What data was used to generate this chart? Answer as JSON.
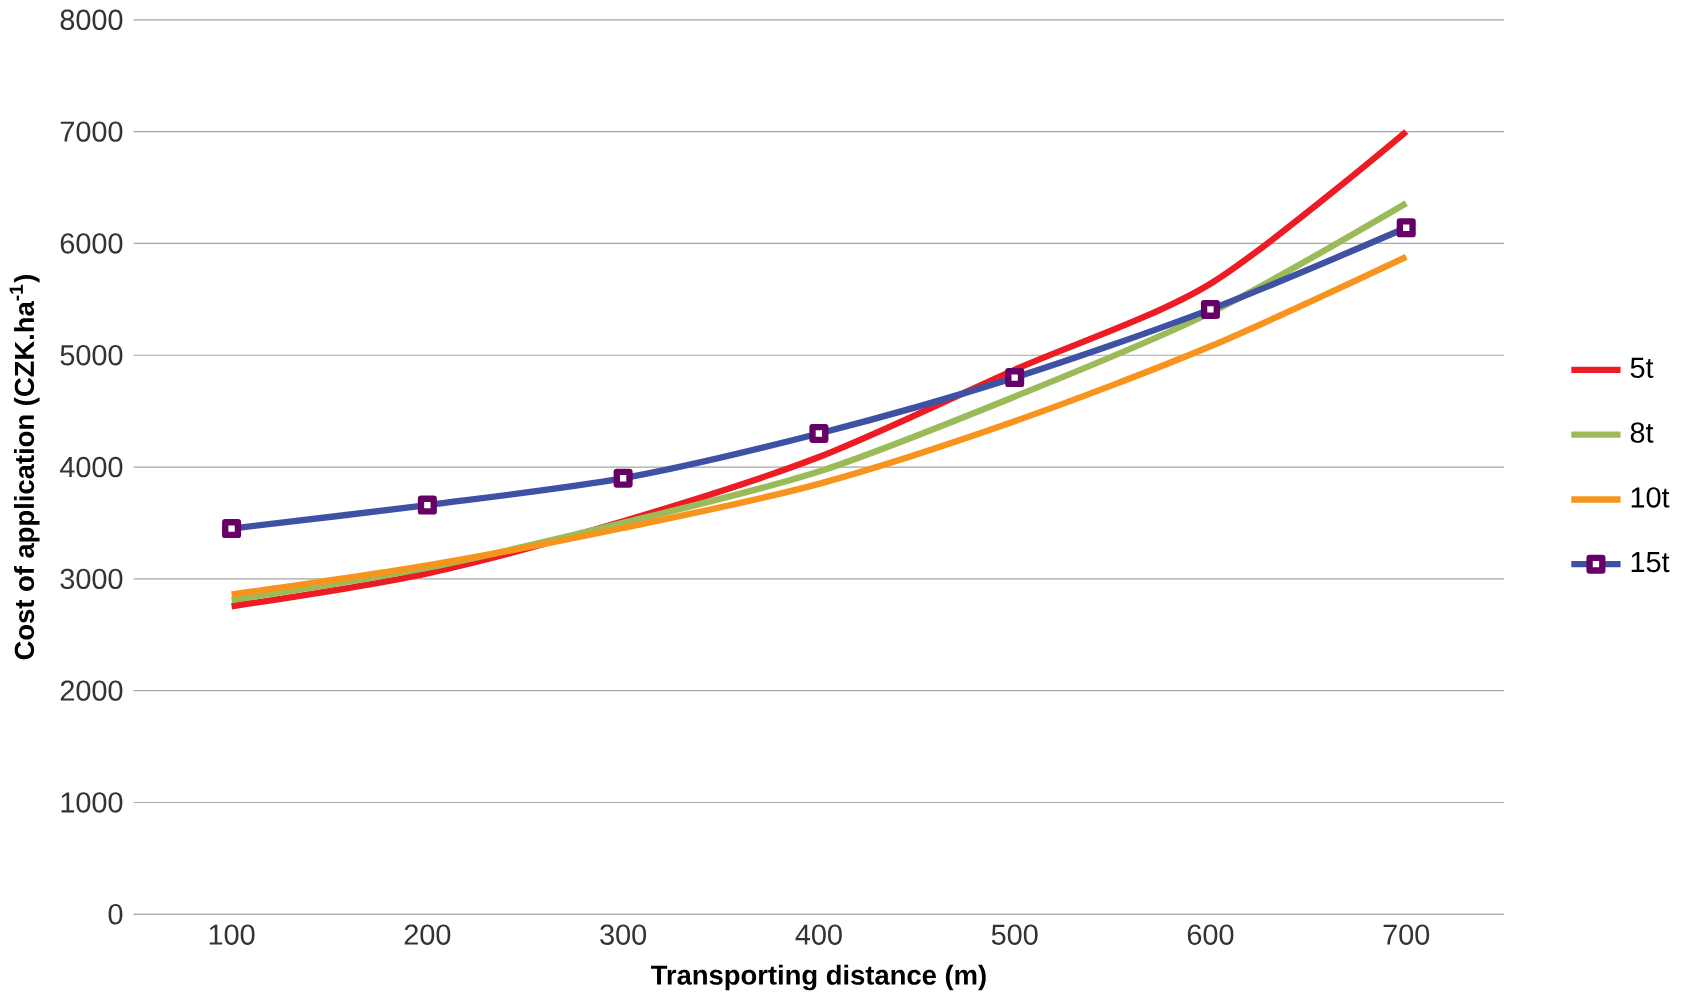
{
  "chart_data": {
    "type": "line",
    "xlabel": "Transporting distance (m)",
    "ylabel": "Cost of application  (CZK.ha$^{-1}$)",
    "x": [
      100,
      200,
      300,
      400,
      500,
      600,
      700
    ],
    "xlim": [
      50,
      750
    ],
    "xticks": [
      100,
      200,
      300,
      400,
      500,
      600,
      700
    ],
    "ylim": [
      0,
      8000
    ],
    "yticks": [
      0,
      1000,
      2000,
      3000,
      4000,
      5000,
      6000,
      7000,
      8000
    ],
    "grid": "y",
    "legend": "right",
    "series": [
      {
        "name": "5t",
        "color": "#ed1c24",
        "values": [
          2755,
          3050,
          3515,
          4090,
          4870,
          5640,
          7000
        ]
      },
      {
        "name": "8t",
        "color": "#9bbb59",
        "values": [
          2810,
          3100,
          3500,
          3960,
          4630,
          5380,
          6360
        ]
      },
      {
        "name": "10t",
        "color": "#f7941d",
        "values": [
          2860,
          3120,
          3455,
          3850,
          4410,
          5080,
          5880
        ]
      },
      {
        "name": "15t",
        "color": "#3f51a3",
        "marker": "square",
        "values": [
          3450,
          3660,
          3900,
          4300,
          4800,
          5410,
          6140
        ]
      }
    ]
  }
}
